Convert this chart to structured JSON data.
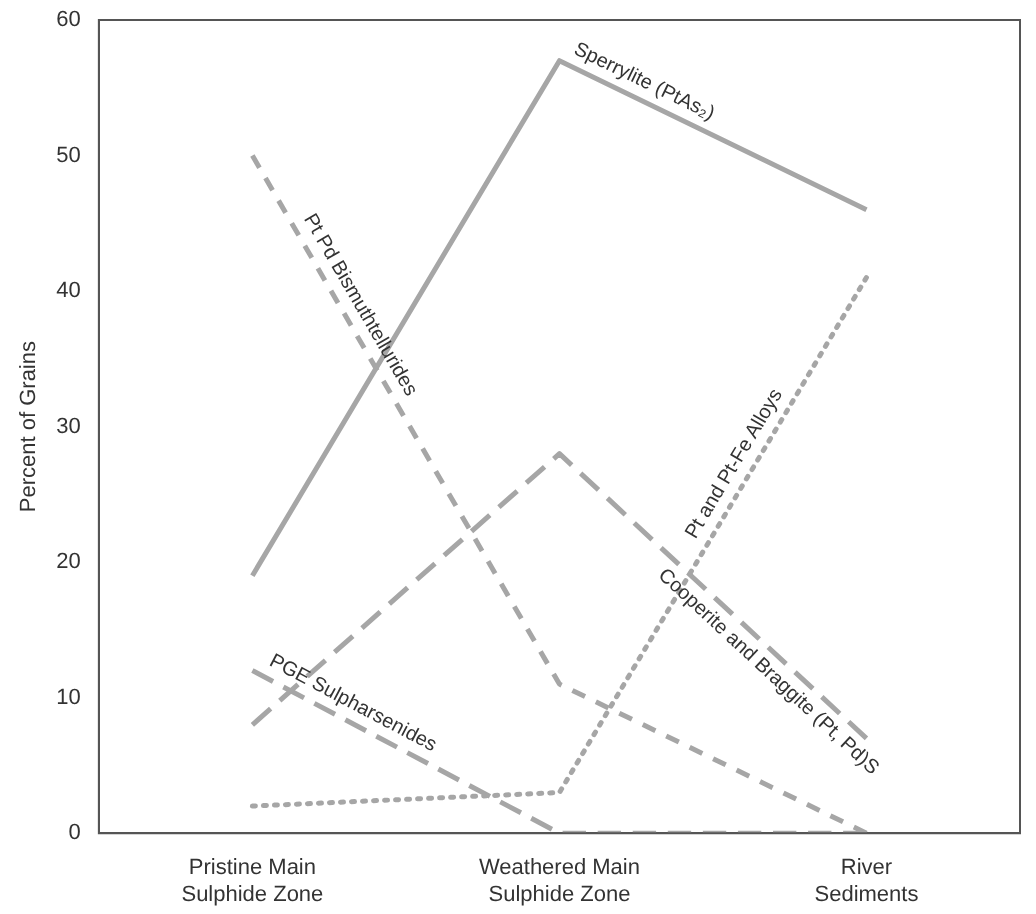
{
  "chart_data": {
    "type": "line",
    "ylabel": "Percent of Grains",
    "categories": [
      "Pristine Main Sulphide Zone",
      "Weathered Main Sulphide Zone",
      "River Sediments"
    ],
    "series": [
      {
        "name": "Sperrylite (PtAs₂)",
        "color": "#a6a6a6",
        "line_style": "solid",
        "values": [
          19,
          57,
          46
        ]
      },
      {
        "name": "Pt Pd Bismuthtellurides",
        "color": "#a6a6a6",
        "line_style": "dashed",
        "values": [
          50,
          11,
          0
        ]
      },
      {
        "name": "Pt and Pt-Fe Alloys",
        "color": "#a6a6a6",
        "line_style": "dotted",
        "values": [
          2,
          3,
          41
        ]
      },
      {
        "name": "Cooperite and Braggite (Pt, Pd)S",
        "color": "#a6a6a6",
        "line_style": "dashed",
        "values": [
          8,
          28,
          7
        ]
      },
      {
        "name": "PGE Sulpharsenides",
        "color": "#a6a6a6",
        "line_style": "dashed",
        "values": [
          12,
          0,
          0
        ]
      }
    ],
    "ylim": [
      0,
      60
    ],
    "yticks": [
      0,
      10,
      20,
      30,
      40,
      50,
      60
    ],
    "grid": false,
    "legend": false,
    "marker": "none"
  }
}
